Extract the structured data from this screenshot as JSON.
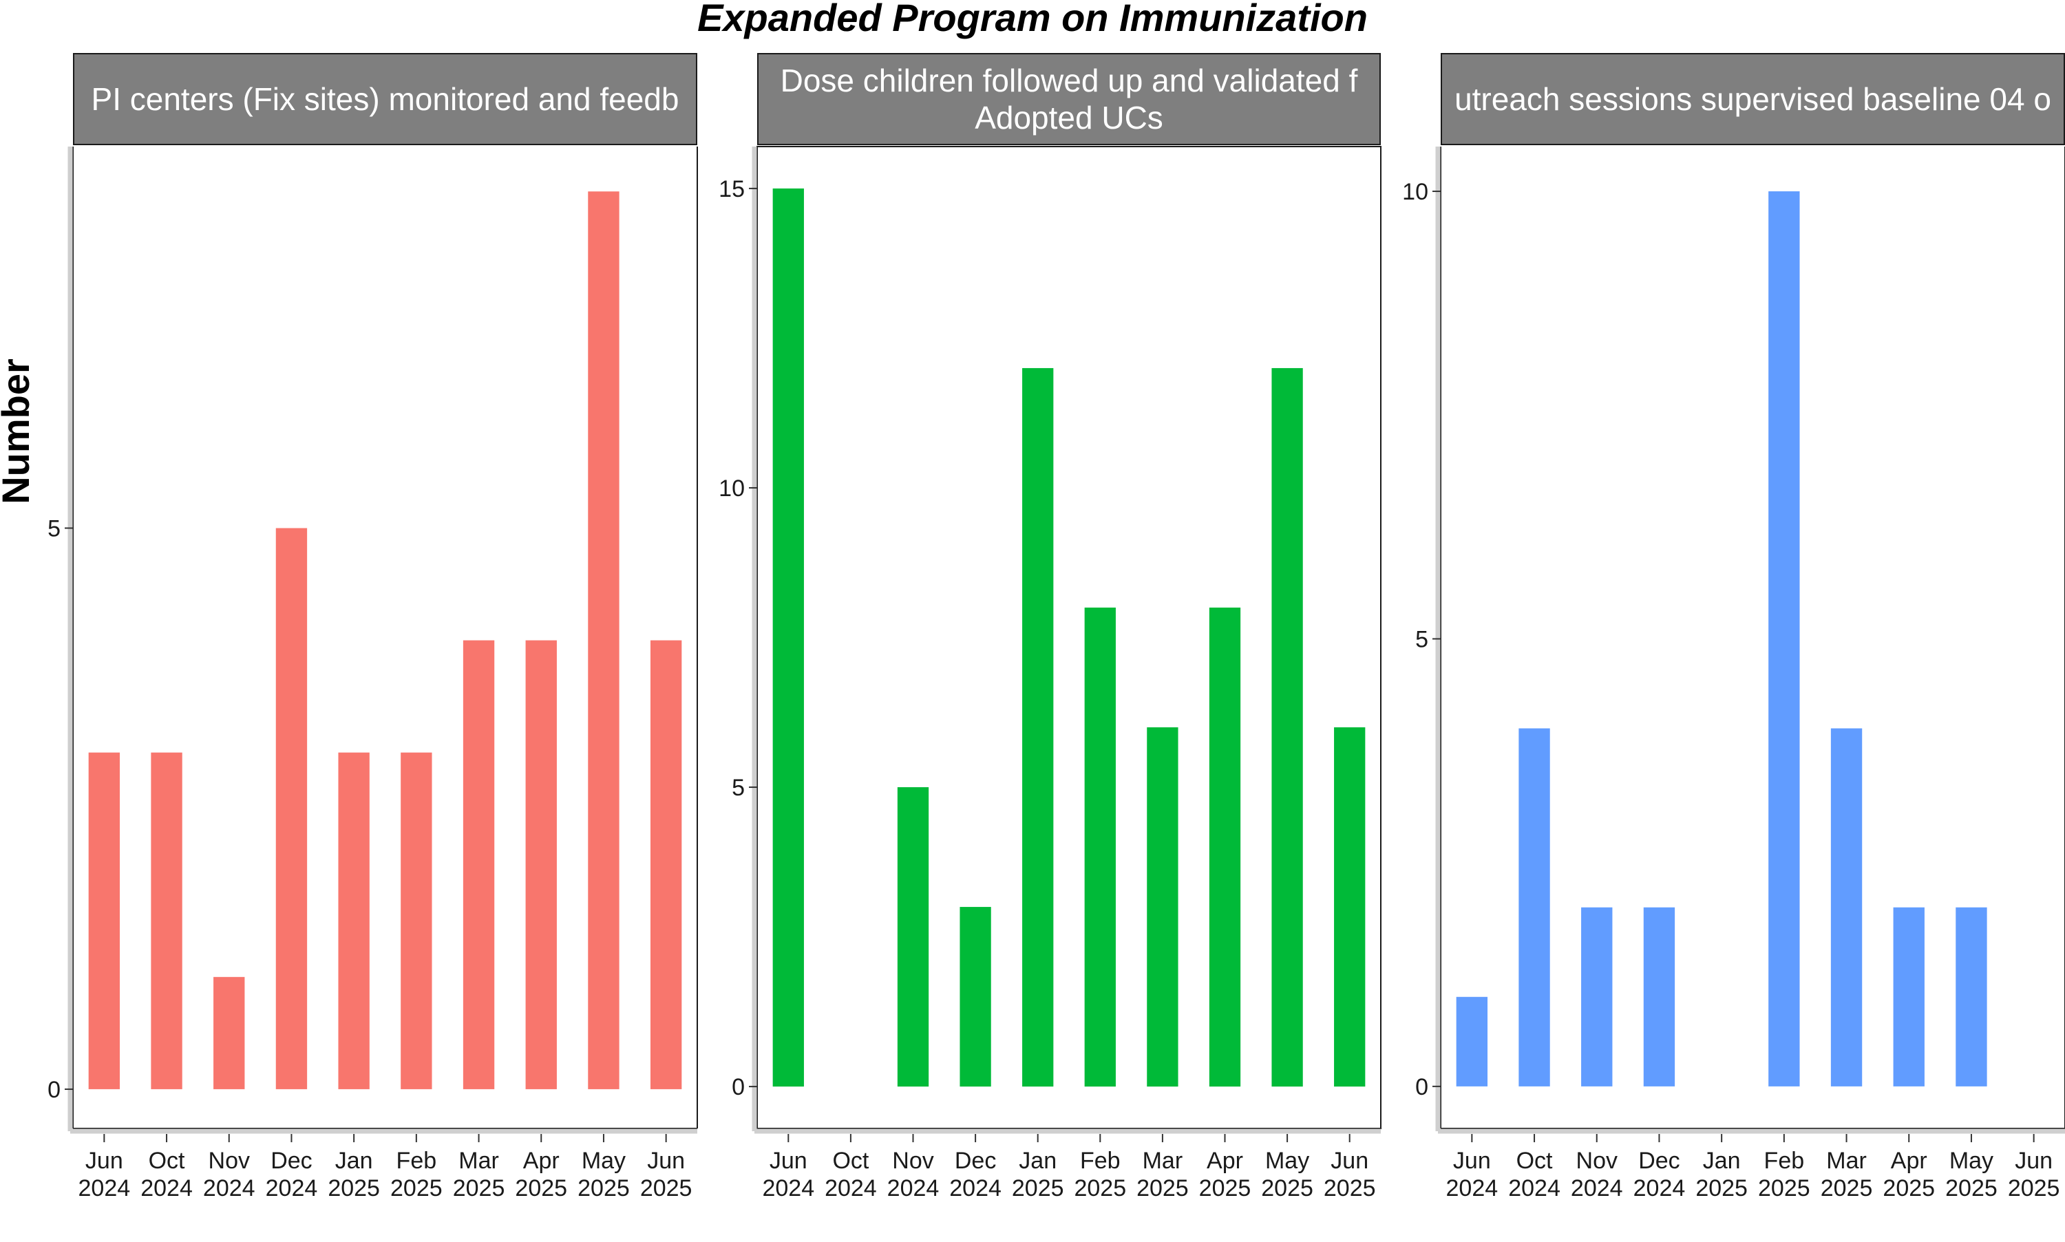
{
  "chart_data": [
    {
      "type": "bar",
      "strip_label": "PI centers (Fix sites) monitored and feedb",
      "color": "#F8766D",
      "categories": [
        "Jun\n2024",
        "Oct\n2024",
        "Nov\n2024",
        "Dec\n2024",
        "Jan\n2025",
        "Feb\n2025",
        "Mar\n2025",
        "Apr\n2025",
        "May\n2025",
        "Jun\n2025"
      ],
      "values": [
        3,
        3,
        1,
        5,
        3,
        3,
        4,
        4,
        8,
        4
      ],
      "ylim": [
        -0.35,
        8.4
      ],
      "yticks": [
        0,
        5
      ]
    },
    {
      "type": "bar",
      "strip_label": "Dose children followed up and validated f\nAdopted UCs",
      "color": "#00BA38",
      "categories": [
        "Jun\n2024",
        "Oct\n2024",
        "Nov\n2024",
        "Dec\n2024",
        "Jan\n2025",
        "Feb\n2025",
        "Mar\n2025",
        "Apr\n2025",
        "May\n2025",
        "Jun\n2025"
      ],
      "values": [
        15,
        0,
        5,
        3,
        12,
        8,
        6,
        8,
        12,
        6
      ],
      "ylim": [
        -0.7,
        15.7
      ],
      "yticks": [
        0,
        5,
        10,
        15
      ]
    },
    {
      "type": "bar",
      "strip_label": "utreach sessions supervised baseline 04 o",
      "color": "#619CFF",
      "categories": [
        "Jun\n2024",
        "Oct\n2024",
        "Nov\n2024",
        "Dec\n2024",
        "Jan\n2025",
        "Feb\n2025",
        "Mar\n2025",
        "Apr\n2025",
        "May\n2025",
        "Jun\n2025"
      ],
      "values": [
        1,
        4,
        2,
        2,
        0,
        10,
        4,
        2,
        2,
        0
      ],
      "ylim": [
        -0.47,
        10.5
      ],
      "yticks": [
        0,
        5,
        10
      ]
    }
  ],
  "title": "Expanded Program on Immunization",
  "ylabel": "Number"
}
